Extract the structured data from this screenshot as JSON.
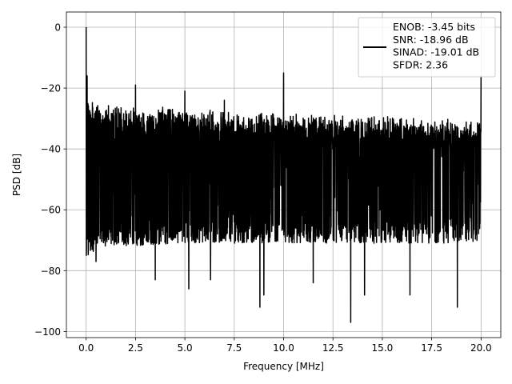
{
  "chart_data": {
    "type": "line",
    "title": "",
    "xlabel": "Frequency [MHz]",
    "ylabel": "PSD [dB]",
    "xlim": [
      -1.0,
      21.0
    ],
    "ylim": [
      -102,
      5
    ],
    "x_ticks": [
      0.0,
      2.5,
      5.0,
      7.5,
      10.0,
      12.5,
      15.0,
      17.5,
      20.0
    ],
    "x_tick_labels": [
      "0.0",
      "2.5",
      "5.0",
      "7.5",
      "10.0",
      "12.5",
      "15.0",
      "17.5",
      "20.0"
    ],
    "y_ticks": [
      0,
      -20,
      -40,
      -60,
      -80,
      -100
    ],
    "y_tick_labels": [
      "0",
      "−20",
      "−40",
      "−60",
      "−80",
      "−100"
    ],
    "grid": true,
    "legend_position": "top-right",
    "legend_lines": [
      "ENOB: -3.45 bits",
      "SNR: -18.96 dB",
      "SINAD: -19.01 dB",
      "SFDR: 2.36"
    ],
    "line_color": "#000000",
    "noise_floor": {
      "x": [
        0.1,
        0.5,
        1.0,
        2.5,
        5.0,
        7.5,
        10.0,
        12.5,
        15.0,
        17.5,
        20.0
      ],
      "upper": [
        -25,
        -26.5,
        -27,
        -27.5,
        -28,
        -29,
        -30,
        -30.5,
        -31,
        -31.5,
        -32
      ],
      "lower": [
        -68,
        -66,
        -65,
        -65,
        -64,
        -64,
        -64,
        -64,
        -64,
        -64,
        -64
      ]
    },
    "peaks": [
      {
        "x": 0.0,
        "y": 0
      },
      {
        "x": 0.05,
        "y": -16
      },
      {
        "x": 2.5,
        "y": -19
      },
      {
        "x": 5.0,
        "y": -21
      },
      {
        "x": 7.0,
        "y": -24
      },
      {
        "x": 10.0,
        "y": -15
      },
      {
        "x": 20.0,
        "y": -16
      }
    ],
    "dips": [
      {
        "x": 0.5,
        "y": -77
      },
      {
        "x": 3.5,
        "y": -83
      },
      {
        "x": 5.2,
        "y": -86
      },
      {
        "x": 6.3,
        "y": -83
      },
      {
        "x": 8.8,
        "y": -92
      },
      {
        "x": 9.0,
        "y": -88
      },
      {
        "x": 11.5,
        "y": -84
      },
      {
        "x": 13.4,
        "y": -97
      },
      {
        "x": 14.1,
        "y": -88
      },
      {
        "x": 16.4,
        "y": -88
      },
      {
        "x": 18.8,
        "y": -92
      }
    ]
  }
}
